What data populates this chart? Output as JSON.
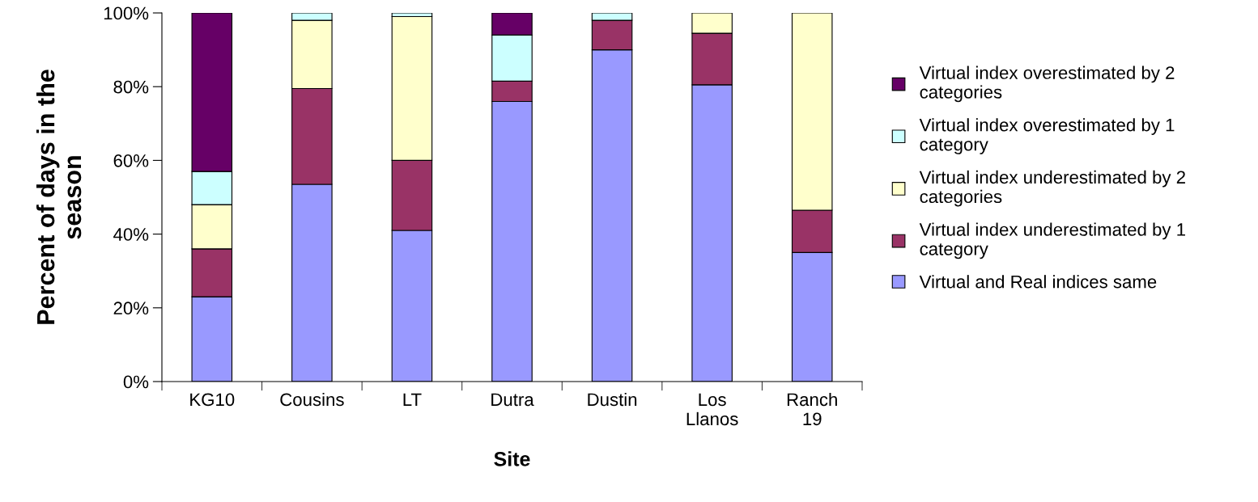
{
  "chart_data": {
    "type": "bar",
    "stacked": true,
    "xlabel": "Site",
    "ylabel": "Percent of days in the\nseason",
    "categories": [
      "KG10",
      "Cousins",
      "LT",
      "Dutra",
      "Dustin",
      "Los\nLlanos",
      "Ranch\n19"
    ],
    "series": [
      {
        "name": "Virtual and Real indices same",
        "color": "#9999ff",
        "values": [
          23,
          53.5,
          41,
          76,
          90,
          80.5,
          35
        ]
      },
      {
        "name": "Virtual index underestimated by 1\ncategory",
        "color": "#993366",
        "values": [
          13,
          26,
          19,
          5.5,
          8,
          14,
          11.5
        ]
      },
      {
        "name": "Virtual index underestimated by 2\ncategories",
        "color": "#ffffcc",
        "values": [
          12,
          18.5,
          39,
          null,
          null,
          5.5,
          53.5
        ]
      },
      {
        "name": "Virtual index overestimated by 1\ncategory",
        "color": "#ccffff",
        "values": [
          9,
          2,
          1,
          12.5,
          2,
          null,
          null
        ]
      },
      {
        "name": "Virtual index overestimated by 2\ncategories",
        "color": "#660066",
        "values": [
          43,
          null,
          null,
          6,
          null,
          null,
          null
        ]
      }
    ],
    "ylim": [
      0,
      100
    ],
    "yticks": [
      {
        "value": 0,
        "label": "0%"
      },
      {
        "value": 20,
        "label": "20%"
      },
      {
        "value": 40,
        "label": "40%"
      },
      {
        "value": 60,
        "label": "60%"
      },
      {
        "value": 80,
        "label": "80%"
      },
      {
        "value": 100,
        "label": "100%"
      }
    ],
    "grid": false,
    "legend": "right"
  }
}
